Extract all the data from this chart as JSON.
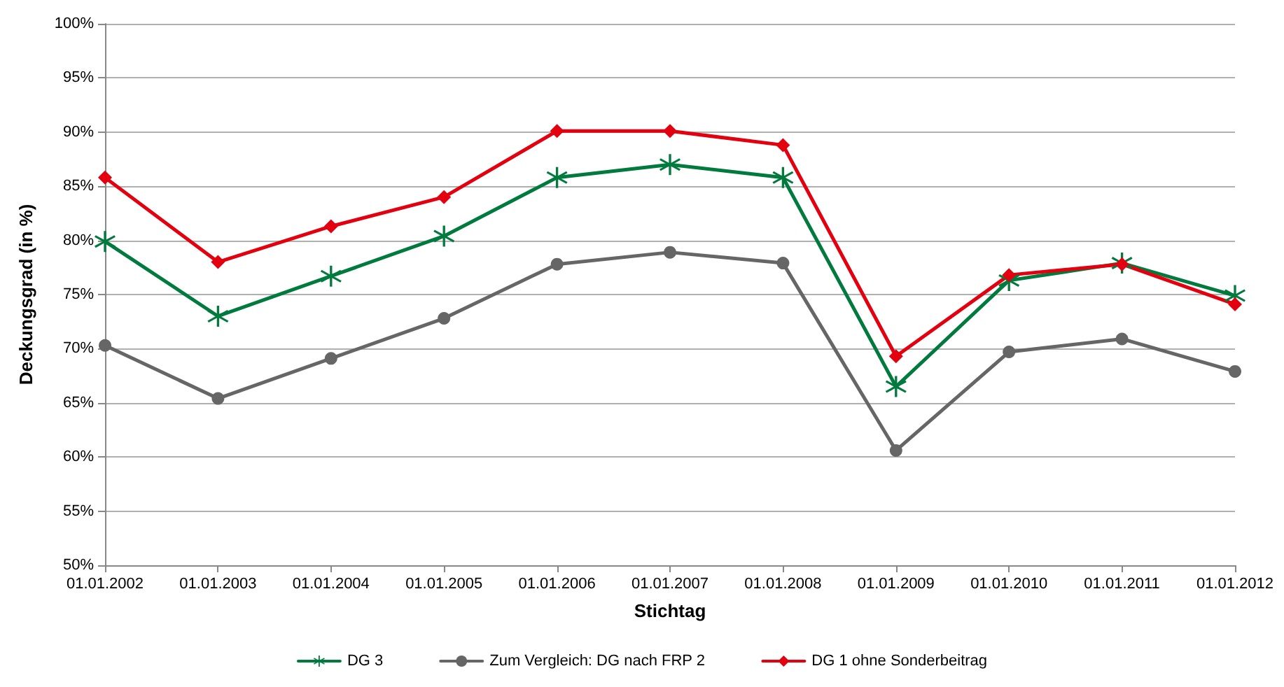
{
  "chart_data": {
    "type": "line",
    "xlabel": "Stichtag",
    "ylabel": "Deckungsgrad (in %)",
    "categories": [
      "01.01.2002",
      "01.01.2003",
      "01.01.2004",
      "01.01.2005",
      "01.01.2006",
      "01.01.2007",
      "01.01.2008",
      "01.01.2009",
      "01.01.2010",
      "01.01.2011",
      "01.01.2012"
    ],
    "series": [
      {
        "name": "DG 3",
        "color": "#007a3d",
        "marker": "cross",
        "values": [
          79.9,
          73,
          76.7,
          80.4,
          85.8,
          87,
          85.8,
          66.5,
          76.3,
          77.9,
          74.9
        ]
      },
      {
        "name": "Zum Vergleich: DG nach FRP 2",
        "color": "#666666",
        "marker": "circle",
        "values": [
          70.3,
          65.4,
          69.1,
          72.8,
          77.8,
          78.9,
          77.9,
          60.6,
          69.7,
          70.9,
          67.9
        ]
      },
      {
        "name": "DG 1 ohne Sonderbeitrag",
        "color": "#e3000f",
        "marker": "diamond",
        "values": [
          85.8,
          78,
          81.3,
          84,
          90.1,
          90.1,
          88.8,
          69.3,
          76.8,
          77.8,
          74.1
        ]
      }
    ],
    "ylim": [
      50,
      100
    ],
    "yticks": [
      {
        "value": 50,
        "label": "50%"
      },
      {
        "value": 55,
        "label": "55%"
      },
      {
        "value": 60,
        "label": "60%"
      },
      {
        "value": 65,
        "label": "65%"
      },
      {
        "value": 70,
        "label": "70%"
      },
      {
        "value": 75,
        "label": "75%"
      },
      {
        "value": 80,
        "label": "80%"
      },
      {
        "value": 85,
        "label": "85%"
      },
      {
        "value": 90,
        "label": "90%"
      },
      {
        "value": 95,
        "label": "95%"
      },
      {
        "value": 100,
        "label": "100%"
      }
    ],
    "grid": "y",
    "legend": "bottom",
    "line_style": "solid"
  }
}
